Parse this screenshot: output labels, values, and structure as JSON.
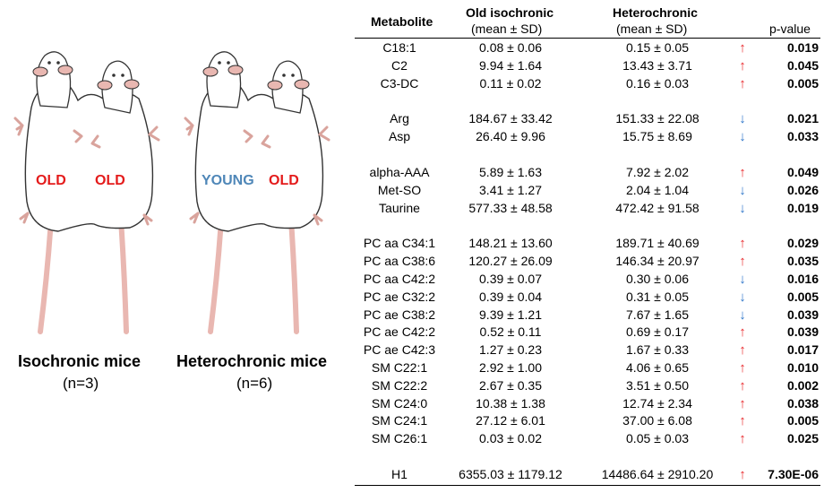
{
  "figure": {
    "groups": [
      {
        "label": "Isochronic mice",
        "n": "(n=3)",
        "tags": [
          "OLD",
          "OLD"
        ]
      },
      {
        "label": "Heterochronic mice",
        "n": "(n=6)",
        "tags": [
          "YOUNG",
          "OLD"
        ]
      }
    ]
  },
  "table": {
    "headers": {
      "metabolite": "Metabolite",
      "old": "Old isochronic",
      "old_sub": "(mean ± SD)",
      "het": "Heterochronic",
      "het_sub": "(mean ± SD)",
      "p": "p-value"
    },
    "rows": [
      {
        "name": "C18:1",
        "old": "0.08 ± 0.06",
        "het": "0.15 ± 0.05",
        "dir": "up",
        "p": "0.019"
      },
      {
        "name": "C2",
        "old": "9.94 ± 1.64",
        "het": "13.43 ± 3.71",
        "dir": "up",
        "p": "0.045"
      },
      {
        "name": "C3-DC",
        "old": "0.11 ± 0.02",
        "het": "0.16 ± 0.03",
        "dir": "up",
        "p": "0.005"
      },
      {
        "name": "Arg",
        "old": "184.67 ± 33.42",
        "het": "151.33 ± 22.08",
        "dir": "down",
        "p": "0.021"
      },
      {
        "name": "Asp",
        "old": "26.40 ± 9.96",
        "het": "15.75 ± 8.69",
        "dir": "down",
        "p": "0.033"
      },
      {
        "name": "alpha-AAA",
        "old": "5.89 ± 1.63",
        "het": "7.92 ± 2.02",
        "dir": "up",
        "p": "0.049"
      },
      {
        "name": "Met-SO",
        "old": "3.41 ± 1.27",
        "het": "2.04 ± 1.04",
        "dir": "down",
        "p": "0.026"
      },
      {
        "name": "Taurine",
        "old": "577.33 ± 48.58",
        "het": "472.42 ± 91.58",
        "dir": "down",
        "p": "0.019"
      },
      {
        "name": "PC aa C34:1",
        "old": "148.21 ± 13.60",
        "het": "189.71 ± 40.69",
        "dir": "up",
        "p": "0.029"
      },
      {
        "name": "PC aa C38:6",
        "old": "120.27 ± 26.09",
        "het": "146.34 ± 20.97",
        "dir": "up",
        "p": "0.035"
      },
      {
        "name": "PC aa C42:2",
        "old": "0.39 ± 0.07",
        "het": "0.30 ± 0.06",
        "dir": "down",
        "p": "0.016"
      },
      {
        "name": "PC ae C32:2",
        "old": "0.39 ± 0.04",
        "het": "0.31 ± 0.05",
        "dir": "down",
        "p": "0.005"
      },
      {
        "name": "PC ae C38:2",
        "old": "9.39 ± 1.21",
        "het": "7.67 ± 1.65",
        "dir": "down",
        "p": "0.039"
      },
      {
        "name": "PC ae C42:2",
        "old": "0.52 ± 0.11",
        "het": "0.69 ± 0.17",
        "dir": "up",
        "p": "0.039"
      },
      {
        "name": "PC ae C42:3",
        "old": "1.27 ± 0.23",
        "het": "1.67 ± 0.33",
        "dir": "up",
        "p": "0.017"
      },
      {
        "name": "SM C22:1",
        "old": "2.92 ± 1.00",
        "het": "4.06 ± 0.65",
        "dir": "up",
        "p": "0.010"
      },
      {
        "name": "SM C22:2",
        "old": "2.67 ± 0.35",
        "het": "3.51 ± 0.50",
        "dir": "up",
        "p": "0.002"
      },
      {
        "name": "SM C24:0",
        "old": "10.38 ± 1.38",
        "het": "12.74 ± 2.34",
        "dir": "up",
        "p": "0.038"
      },
      {
        "name": "SM C24:1",
        "old": "27.12 ± 6.01",
        "het": "37.00 ± 6.08",
        "dir": "up",
        "p": "0.005"
      },
      {
        "name": "SM C26:1",
        "old": "0.03 ± 0.02",
        "het": "0.05 ± 0.03",
        "dir": "up",
        "p": "0.025"
      },
      {
        "name": "H1",
        "old": "6355.03 ± 1179.12",
        "het": "14486.64 ± 2910.20",
        "dir": "up",
        "p": "7.30E-06"
      }
    ],
    "arrows": {
      "up": "↑",
      "down": "↓"
    },
    "colors": {
      "up": "#e8262a",
      "down": "#2e75c9",
      "old_tag": "#e41b1b",
      "young_tag": "#4f87b8"
    }
  }
}
